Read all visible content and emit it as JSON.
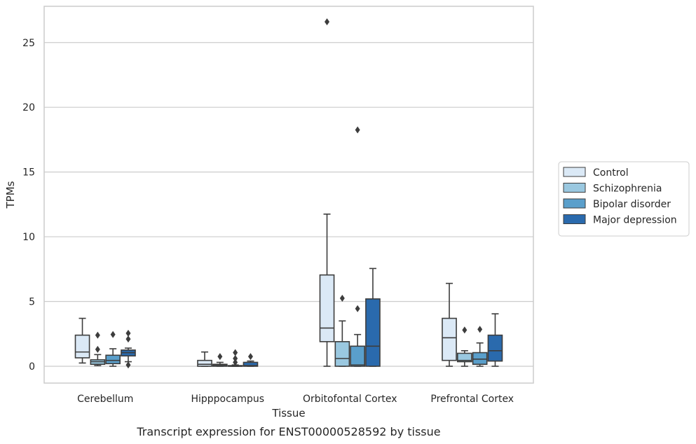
{
  "chart_data": {
    "type": "box",
    "xlabel": "Tissue",
    "ylabel": "TPMs",
    "caption": "Transcript expression for ENST00000528592 by tissue",
    "ylim": [
      -1.3,
      27.8
    ],
    "yticks": [
      0,
      5,
      10,
      15,
      20,
      25
    ],
    "grid": "horizontal",
    "legend_position": "right",
    "categories": [
      "Cerebellum",
      "Hipppocampus",
      "Orbitofontal Cortex",
      "Prefrontal Cortex"
    ],
    "series": [
      {
        "name": "Control",
        "color": "#dbe9f6",
        "boxes": [
          {
            "whislo": 0.25,
            "q1": 0.65,
            "med": 1.1,
            "q3": 2.4,
            "whishi": 3.7,
            "fliers": []
          },
          {
            "whislo": 0.0,
            "q1": 0.0,
            "med": 0.15,
            "q3": 0.45,
            "whishi": 1.1,
            "fliers": []
          },
          {
            "whislo": 0.0,
            "q1": 1.9,
            "med": 2.95,
            "q3": 7.05,
            "whishi": 11.75,
            "fliers": [
              26.6
            ]
          },
          {
            "whislo": 0.0,
            "q1": 0.45,
            "med": 2.2,
            "q3": 3.7,
            "whishi": 6.4,
            "fliers": []
          }
        ]
      },
      {
        "name": "Schizophrenia",
        "color": "#9ac8e0",
        "boxes": [
          {
            "whislo": 0.05,
            "q1": 0.15,
            "med": 0.35,
            "q3": 0.5,
            "whishi": 0.9,
            "fliers": [
              1.3,
              2.4
            ]
          },
          {
            "whislo": 0.0,
            "q1": 0.0,
            "med": 0.08,
            "q3": 0.15,
            "whishi": 0.3,
            "fliers": [
              0.75
            ]
          },
          {
            "whislo": 0.0,
            "q1": 0.0,
            "med": 0.6,
            "q3": 1.9,
            "whishi": 3.5,
            "fliers": [
              5.25
            ]
          },
          {
            "whislo": 0.0,
            "q1": 0.35,
            "med": 0.45,
            "q3": 1.0,
            "whishi": 1.2,
            "fliers": [
              2.8
            ]
          }
        ]
      },
      {
        "name": "Bipolar disorder",
        "color": "#5a9fcb",
        "boxes": [
          {
            "whislo": 0.0,
            "q1": 0.2,
            "med": 0.45,
            "q3": 0.85,
            "whishi": 1.35,
            "fliers": [
              2.45
            ]
          },
          {
            "whislo": 0.0,
            "q1": 0.0,
            "med": 0.0,
            "q3": 0.05,
            "whishi": 0.1,
            "fliers": [
              0.3,
              0.6,
              1.05
            ]
          },
          {
            "whislo": 0.0,
            "q1": 0.0,
            "med": 0.1,
            "q3": 1.55,
            "whishi": 2.45,
            "fliers": [
              4.45,
              18.25
            ]
          },
          {
            "whislo": 0.0,
            "q1": 0.15,
            "med": 0.55,
            "q3": 1.05,
            "whishi": 1.8,
            "fliers": [
              2.85
            ]
          }
        ]
      },
      {
        "name": "Major depression",
        "color": "#2a6aad",
        "boxes": [
          {
            "whislo": 0.35,
            "q1": 0.8,
            "med": 1.05,
            "q3": 1.25,
            "whishi": 1.4,
            "fliers": [
              0.1,
              2.1,
              2.55
            ]
          },
          {
            "whislo": 0.0,
            "q1": 0.0,
            "med": 0.05,
            "q3": 0.3,
            "whishi": 0.4,
            "fliers": [
              0.75
            ]
          },
          {
            "whislo": 0.0,
            "q1": 0.0,
            "med": 1.55,
            "q3": 5.2,
            "whishi": 7.55,
            "fliers": []
          },
          {
            "whislo": 0.0,
            "q1": 0.4,
            "med": 1.2,
            "q3": 2.4,
            "whishi": 4.05,
            "fliers": []
          }
        ]
      }
    ]
  }
}
